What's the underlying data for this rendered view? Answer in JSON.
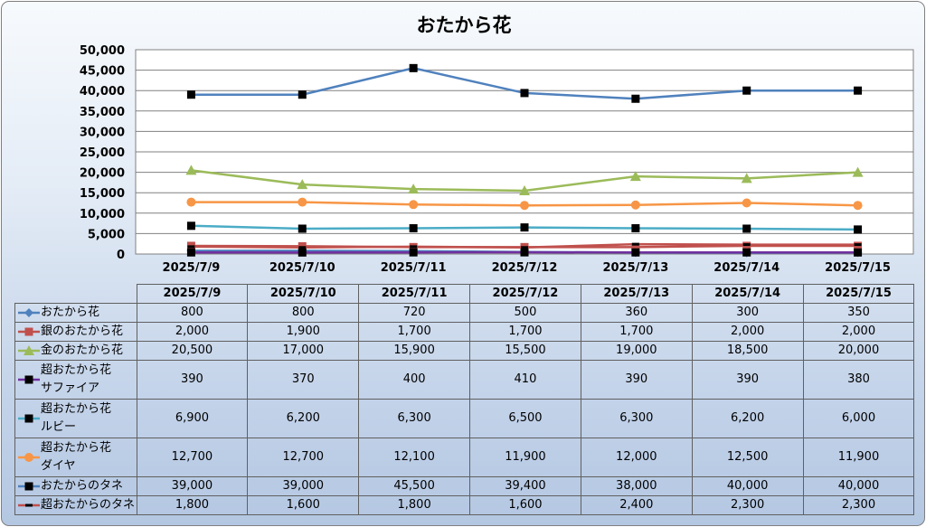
{
  "chart_data": {
    "type": "line",
    "title": "おたから花",
    "ylim": [
      0,
      50000
    ],
    "yticks": [
      "0",
      "5,000",
      "10,000",
      "15,000",
      "20,000",
      "25,000",
      "30,000",
      "35,000",
      "40,000",
      "45,000",
      "50,000"
    ],
    "grid": true,
    "legend": "data-table-left",
    "categories": [
      "2025/7/9",
      "2025/7/10",
      "2025/7/11",
      "2025/7/12",
      "2025/7/13",
      "2025/7/14",
      "2025/7/15"
    ],
    "series": [
      {
        "name": "おたから花",
        "color": "#4f81bd",
        "marker": "diamond",
        "values": [
          800,
          800,
          720,
          500,
          360,
          300,
          350
        ],
        "labels": [
          "800",
          "800",
          "720",
          "500",
          "360",
          "300",
          "350"
        ]
      },
      {
        "name": "銀のおたから花",
        "color": "#c0504d",
        "marker": "square",
        "values": [
          2000,
          1900,
          1700,
          1700,
          1700,
          2000,
          2000
        ],
        "labels": [
          "2,000",
          "1,900",
          "1,700",
          "1,700",
          "1,700",
          "2,000",
          "2,000"
        ]
      },
      {
        "name": "金のおたから花",
        "color": "#9bbb59",
        "marker": "triangle",
        "values": [
          20500,
          17000,
          15900,
          15500,
          19000,
          18500,
          20000
        ],
        "labels": [
          "20,500",
          "17,000",
          "15,900",
          "15,500",
          "19,000",
          "18,500",
          "20,000"
        ]
      },
      {
        "name": "超おたから花\nサファイア",
        "color": "#7030a0",
        "marker": "black-square",
        "values": [
          390,
          370,
          400,
          410,
          390,
          390,
          380
        ],
        "labels": [
          "390",
          "370",
          "400",
          "410",
          "390",
          "390",
          "380"
        ]
      },
      {
        "name": "超おたから花\nルビー",
        "color": "#4bacc6",
        "marker": "black-square",
        "values": [
          6900,
          6200,
          6300,
          6500,
          6300,
          6200,
          6000
        ],
        "labels": [
          "6,900",
          "6,200",
          "6,300",
          "6,500",
          "6,300",
          "6,200",
          "6,000"
        ]
      },
      {
        "name": "超おたから花\nダイヤ",
        "color": "#f79646",
        "marker": "circle",
        "values": [
          12700,
          12700,
          12100,
          11900,
          12000,
          12500,
          11900
        ],
        "labels": [
          "12,700",
          "12,700",
          "12,100",
          "11,900",
          "12,000",
          "12,500",
          "11,900"
        ]
      },
      {
        "name": "おたからのタネ",
        "color": "#4f81bd",
        "marker": "black-square",
        "values": [
          39000,
          39000,
          45500,
          39400,
          38000,
          40000,
          40000
        ],
        "labels": [
          "39,000",
          "39,000",
          "45,500",
          "39,400",
          "38,000",
          "40,000",
          "40,000"
        ]
      },
      {
        "name": "超おたからのタネ",
        "color": "#c0504d",
        "marker": "dash",
        "values": [
          1800,
          1600,
          1800,
          1600,
          2400,
          2300,
          2300
        ],
        "labels": [
          "1,800",
          "1,600",
          "1,800",
          "1,600",
          "2,400",
          "2,300",
          "2,300"
        ]
      }
    ]
  }
}
